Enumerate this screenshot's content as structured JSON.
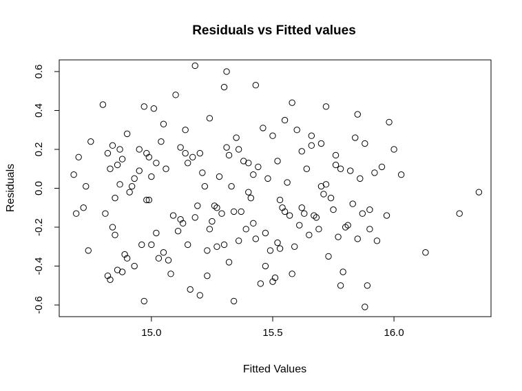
{
  "chart_data": {
    "type": "scatter",
    "title": "Residuals vs Fitted values",
    "xlabel": "Fitted Values",
    "ylabel": "Residuals",
    "xlim": [
      14.62,
      16.4
    ],
    "ylim": [
      -0.66,
      0.66
    ],
    "xticks": [
      15.0,
      15.5,
      16.0
    ],
    "xtick_labels": [
      "15.0",
      "15.5",
      "16.0"
    ],
    "yticks": [
      -0.6,
      -0.4,
      -0.2,
      0.0,
      0.2,
      0.4,
      0.6
    ],
    "ytick_labels": [
      "-0.6",
      "-0.4",
      "-0.2",
      "0.0",
      "0.2",
      "0.4",
      "0.6"
    ],
    "grid": false,
    "legend": "none",
    "marker": "open-circle",
    "x": [
      14.68,
      14.69,
      14.7,
      14.73,
      14.74,
      14.75,
      14.8,
      14.81,
      14.82,
      14.83,
      14.84,
      14.85,
      14.86,
      14.87,
      14.88,
      14.9,
      14.91,
      14.93,
      14.95,
      14.97,
      14.98,
      14.99,
      15.01,
      15.02,
      15.04,
      15.06,
      15.08,
      15.1,
      15.12,
      15.14,
      15.15,
      15.17,
      15.18,
      15.2,
      15.21,
      15.22,
      15.24,
      15.26,
      15.28,
      15.3,
      15.31,
      15.33,
      15.35,
      15.37,
      15.38,
      15.4,
      15.42,
      15.44,
      15.46,
      15.48,
      15.5,
      15.52,
      15.54,
      15.56,
      15.58,
      15.6,
      15.62,
      15.64,
      15.66,
      15.68,
      15.7,
      15.72,
      15.74,
      15.76,
      15.78,
      15.8,
      15.82,
      15.84,
      15.86,
      15.88,
      15.9,
      15.92,
      15.95,
      15.98,
      16.0,
      16.03,
      14.72,
      14.82,
      14.84,
      14.86,
      14.89,
      14.92,
      14.96,
      14.99,
      15.02,
      15.05,
      15.09,
      15.11,
      15.13,
      15.16,
      15.19,
      15.23,
      15.25,
      15.27,
      15.29,
      15.32,
      15.34,
      15.36,
      15.39,
      15.41,
      15.43,
      15.45,
      15.47,
      15.49,
      15.51,
      15.53,
      15.55,
      15.57,
      15.59,
      15.61,
      15.63,
      15.65,
      15.67,
      15.69,
      15.71,
      15.73,
      15.75,
      15.77,
      15.79,
      15.81,
      15.83,
      15.85,
      15.87,
      15.89,
      15.93,
      15.97,
      16.13,
      16.27,
      16.35,
      14.83,
      14.85,
      14.88,
      14.9,
      14.93,
      14.97,
      15.0,
      15.03,
      15.07,
      15.12,
      15.15,
      15.2,
      15.23,
      15.3,
      15.34,
      15.42,
      15.47,
      15.5,
      15.52,
      15.58,
      15.62,
      15.78,
      15.88,
      14.98,
      15.0,
      15.18,
      15.31,
      15.43,
      15.72,
      15.32,
      14.87,
      15.05,
      15.24,
      15.36,
      15.55,
      15.66,
      15.76,
      15.85,
      14.95,
      15.14,
      15.27,
      15.4,
      15.53,
      15.7,
      15.9
    ],
    "y": [
      0.07,
      -0.13,
      0.16,
      0.01,
      -0.32,
      0.24,
      0.43,
      -0.13,
      0.18,
      0.1,
      0.22,
      -0.05,
      0.12,
      0.02,
      0.15,
      0.28,
      -0.02,
      0.05,
      0.2,
      0.42,
      -0.06,
      0.16,
      0.41,
      0.13,
      0.24,
      0.1,
      -0.44,
      0.48,
      0.21,
      0.3,
      0.13,
      0.16,
      -0.15,
      0.18,
      0.08,
      0.01,
      -0.21,
      -0.09,
      0.06,
      0.52,
      0.21,
      0.01,
      0.26,
      -0.12,
      0.14,
      -0.02,
      0.07,
      0.11,
      0.31,
      0.05,
      0.27,
      0.14,
      -0.1,
      0.03,
      0.44,
      0.3,
      0.19,
      0.1,
      0.22,
      -0.15,
      0.23,
      0.02,
      -0.05,
      0.17,
      0.1,
      -0.2,
      0.09,
      0.26,
      0.05,
      0.23,
      -0.21,
      0.08,
      0.11,
      0.34,
      0.2,
      0.07,
      -0.1,
      -0.45,
      -0.2,
      -0.42,
      -0.34,
      0.01,
      -0.29,
      -0.06,
      -0.23,
      -0.33,
      -0.14,
      -0.22,
      -0.18,
      -0.52,
      -0.09,
      -0.32,
      -0.17,
      -0.3,
      -0.13,
      -0.38,
      -0.58,
      -0.27,
      -0.21,
      -0.05,
      -0.26,
      -0.49,
      -0.23,
      -0.32,
      -0.46,
      -0.31,
      -0.12,
      -0.14,
      -0.3,
      -0.19,
      -0.13,
      -0.24,
      -0.14,
      -0.21,
      -0.03,
      -0.35,
      -0.11,
      -0.25,
      -0.43,
      -0.19,
      -0.08,
      -0.26,
      -0.13,
      -0.5,
      -0.27,
      -0.14,
      -0.33,
      -0.13,
      -0.02,
      -0.47,
      -0.24,
      -0.43,
      -0.36,
      -0.4,
      -0.58,
      -0.29,
      -0.36,
      -0.37,
      -0.16,
      -0.29,
      -0.55,
      -0.45,
      -0.29,
      -0.12,
      -0.18,
      -0.4,
      -0.48,
      -0.28,
      -0.44,
      -0.1,
      -0.5,
      -0.61,
      0.18,
      0.06,
      0.63,
      0.6,
      0.53,
      0.42,
      0.17,
      0.2,
      0.33,
      0.36,
      0.2,
      0.35,
      0.27,
      0.12,
      0.38,
      0.09,
      0.18,
      -0.1,
      0.13,
      -0.06,
      0.01,
      -0.11
    ]
  }
}
